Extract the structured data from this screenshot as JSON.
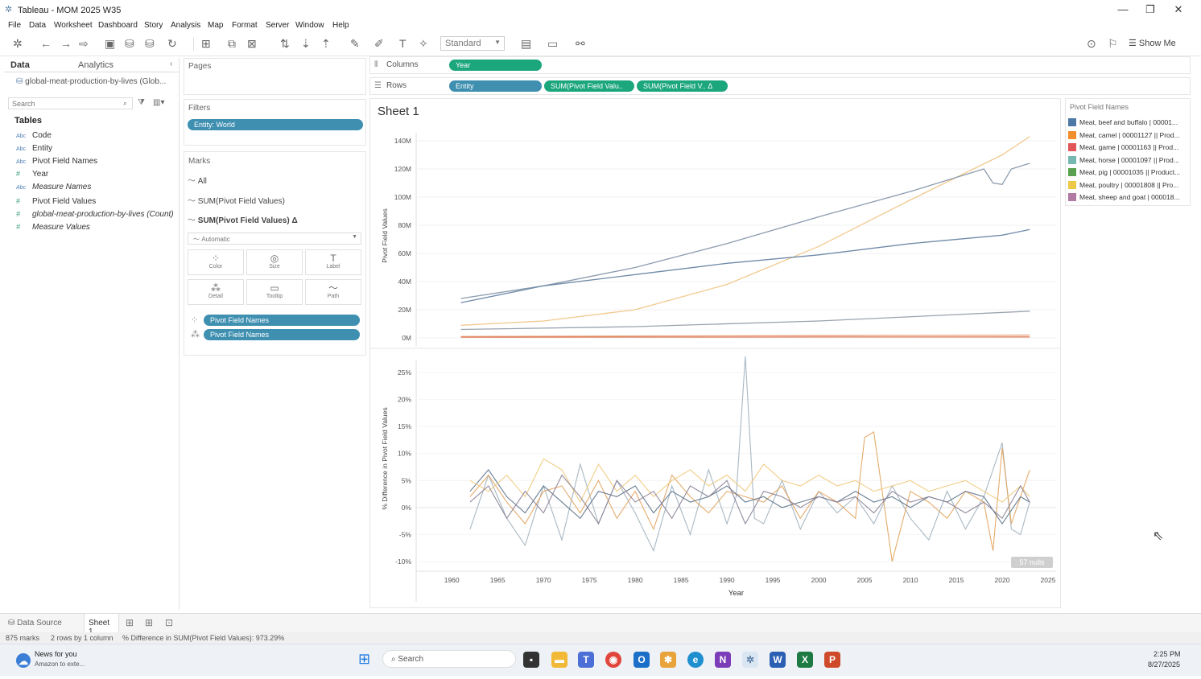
{
  "window": {
    "title": "Tableau - MOM 2025 W35",
    "minimize": "—",
    "restore": "❐",
    "close": "✕"
  },
  "menu": [
    "File",
    "Data",
    "Worksheet",
    "Dashboard",
    "Story",
    "Analysis",
    "Map",
    "Format",
    "Server",
    "Window",
    "Help"
  ],
  "toolbar": {
    "fit": "Standard",
    "show_me": "Show Me"
  },
  "data_pane": {
    "tab_data": "Data",
    "tab_analytics": "Analytics",
    "datasource": "global-meat-production-by-lives (Glob...",
    "search_placeholder": "Search",
    "tables_header": "Tables",
    "fields": [
      {
        "type": "Abc",
        "name": "Code"
      },
      {
        "type": "Abc",
        "name": "Entity"
      },
      {
        "type": "Abc",
        "name": "Pivot Field Names"
      },
      {
        "type": "#",
        "name": "Year"
      },
      {
        "type": "Abc",
        "name": "Measure Names"
      },
      {
        "type": "#",
        "name": "Pivot Field Values"
      },
      {
        "type": "#",
        "name": "global-meat-production-by-lives (Count)"
      },
      {
        "type": "#",
        "name": "Measure Values"
      }
    ]
  },
  "pages": {
    "title": "Pages"
  },
  "filters": {
    "title": "Filters",
    "pill": "Entity: World"
  },
  "marks": {
    "title": "Marks",
    "all": "All",
    "row1": "SUM(Pivot Field Values)",
    "row2": "SUM(Pivot Field Values) Δ",
    "type": "Automatic",
    "buttons": [
      "Color",
      "Size",
      "Label",
      "Detail",
      "Tooltip",
      "Path"
    ],
    "pill1": "Pivot Field Names",
    "pill2": "Pivot Field Names"
  },
  "shelves": {
    "columns_label": "Columns",
    "rows_label": "Rows",
    "columns_pill": "Year",
    "rows_pills": [
      "Entity",
      "SUM(Pivot Field Valu..",
      "SUM(Pivot Field V.. Δ"
    ]
  },
  "sheet": {
    "title": "Sheet 1",
    "nulls": "57 nulls"
  },
  "legend": {
    "title": "Pivot Field Names",
    "items": [
      {
        "label": "Meat, beef and buffalo | 00001...",
        "color": "#4e79a7"
      },
      {
        "label": "Meat, camel | 00001127 || Prod...",
        "color": "#f28e2b"
      },
      {
        "label": "Meat, game | 00001163 || Prod...",
        "color": "#e15759"
      },
      {
        "label": "Meat, horse | 00001097 || Prod...",
        "color": "#76b7b2"
      },
      {
        "label": "Meat, pig | 00001035 || Product...",
        "color": "#59a14f"
      },
      {
        "label": "Meat, poultry | 00001808 || Pro...",
        "color": "#edc948"
      },
      {
        "label": "Meat, sheep and goat | 000018...",
        "color": "#b07aa1"
      }
    ]
  },
  "chart_data": [
    {
      "type": "line",
      "ylabel": "Pivot Field Values",
      "xlabel": "Year",
      "y_ticks": [
        "0M",
        "20M",
        "40M",
        "60M",
        "80M",
        "100M",
        "120M",
        "140M"
      ],
      "ylim": [
        0,
        140
      ],
      "xlim": [
        1957,
        2025
      ],
      "series": [
        {
          "name": "Meat, poultry | 00001808 || Pro...",
          "color": "#f1c98e",
          "x": [
            1961,
            1970,
            1980,
            1990,
            2000,
            2010,
            2020,
            2023
          ],
          "y": [
            9,
            12,
            20,
            38,
            65,
            98,
            130,
            143
          ]
        },
        {
          "name": "Meat, pig | 00001035 || Product...",
          "color": "#8c9cae",
          "x": [
            1961,
            1970,
            1980,
            1990,
            2000,
            2010,
            2018,
            2019,
            2020,
            2021,
            2023
          ],
          "y": [
            28,
            37,
            50,
            67,
            86,
            104,
            120,
            110,
            109,
            120,
            124
          ]
        },
        {
          "name": "Meat, beef and buffalo | 00001...",
          "color": "#6f8aa8",
          "x": [
            1961,
            1970,
            1980,
            1990,
            2000,
            2010,
            2020,
            2023
          ],
          "y": [
            25,
            37,
            45,
            53,
            59,
            67,
            73,
            77
          ]
        },
        {
          "name": "Meat, sheep and goat | 000018...",
          "color": "#9aa3ad",
          "x": [
            1961,
            1980,
            2000,
            2023
          ],
          "y": [
            6,
            8,
            12,
            19
          ]
        },
        {
          "name": "Meat, game | 00001163 || Prod...",
          "color": "#e8a07a",
          "x": [
            1961,
            2023
          ],
          "y": [
            1,
            2
          ]
        },
        {
          "name": "Meat, camel | 00001127 || Prod...",
          "color": "#e07c5a",
          "x": [
            1961,
            2023
          ],
          "y": [
            0.5,
            0.7
          ]
        }
      ]
    },
    {
      "type": "line",
      "ylabel": "% Difference in Pivot Field Values",
      "xlabel": "Year",
      "x_ticks": [
        1960,
        1965,
        1970,
        1975,
        1980,
        1985,
        1990,
        1995,
        2000,
        2005,
        2010,
        2015,
        2020,
        2025
      ],
      "y_ticks": [
        "-10%",
        "-5%",
        "0%",
        "5%",
        "10%",
        "15%",
        "20%",
        "25%"
      ],
      "ylim": [
        -10,
        25
      ],
      "series": [
        {
          "name": "Meat, horse | 00001097 || Prod...",
          "color": "#9fb0bd",
          "x": [
            1962,
            1964,
            1966,
            1968,
            1970,
            1972,
            1974,
            1976,
            1978,
            1980,
            1982,
            1984,
            1986,
            1988,
            1990,
            1991,
            1992,
            1993,
            1994,
            1996,
            1998,
            2000,
            2002,
            2004,
            2006,
            2008,
            2010,
            2012,
            2014,
            2016,
            2018,
            2020,
            2021,
            2022,
            2023
          ],
          "y": [
            -4,
            6,
            -2,
            -7,
            4,
            -6,
            8,
            -3,
            5,
            -1,
            -8,
            4,
            -5,
            7,
            -3,
            2,
            28,
            -2,
            -3,
            5,
            -4,
            3,
            -1,
            2,
            -3,
            4,
            -2,
            -6,
            3,
            -4,
            2,
            12,
            -4,
            -5,
            1
          ]
        },
        {
          "name": "Meat, sheep and goat | 000018...",
          "color": "#e2a35d",
          "x": [
            1962,
            1964,
            1966,
            1968,
            1970,
            1972,
            1974,
            1976,
            1978,
            1980,
            1982,
            1984,
            1986,
            1988,
            1990,
            1992,
            1994,
            1996,
            1998,
            2000,
            2002,
            2004,
            2005,
            2006,
            2007,
            2008,
            2010,
            2012,
            2014,
            2016,
            2018,
            2019,
            2020,
            2021,
            2022,
            2023
          ],
          "y": [
            2,
            6,
            1,
            -3,
            3,
            4,
            -1,
            5,
            -2,
            3,
            -4,
            6,
            2,
            -1,
            3,
            2,
            1,
            4,
            -2,
            3,
            1,
            -2,
            13,
            14,
            2,
            -10,
            3,
            1,
            -2,
            3,
            1,
            -8,
            11,
            -3,
            2,
            7
          ]
        },
        {
          "name": "Meat, beef and buffalo | 00001...",
          "color": "#5a6f86",
          "x": [
            1962,
            1964,
            1966,
            1968,
            1970,
            1972,
            1974,
            1976,
            1978,
            1980,
            1982,
            1984,
            1986,
            1988,
            1990,
            1992,
            1994,
            1996,
            1998,
            2000,
            2002,
            2004,
            2006,
            2008,
            2010,
            2012,
            2014,
            2016,
            2018,
            2020,
            2022,
            2023
          ],
          "y": [
            3,
            7,
            2,
            -1,
            4,
            1,
            -2,
            3,
            2,
            4,
            -1,
            3,
            1,
            2,
            4,
            1,
            2,
            0,
            1,
            2,
            1,
            3,
            1,
            2,
            0,
            2,
            1,
            3,
            2,
            -3,
            2,
            1
          ]
        },
        {
          "name": "Meat, poultry | 00001808 || Pro...",
          "color": "#f0c879",
          "x": [
            1962,
            1964,
            1966,
            1968,
            1970,
            1972,
            1974,
            1976,
            1978,
            1980,
            1982,
            1984,
            1986,
            1988,
            1990,
            1992,
            1994,
            1996,
            1998,
            2000,
            2002,
            2004,
            2006,
            2008,
            2010,
            2012,
            2014,
            2016,
            2018,
            2020,
            2022,
            2023
          ],
          "y": [
            5,
            3,
            6,
            2,
            9,
            7,
            1,
            8,
            3,
            6,
            2,
            5,
            7,
            4,
            6,
            3,
            8,
            5,
            4,
            6,
            4,
            5,
            3,
            4,
            5,
            3,
            4,
            5,
            3,
            1,
            4,
            2
          ]
        },
        {
          "name": "Meat, pig | 00001035 || Product...",
          "color": "#8a7e93",
          "x": [
            1962,
            1964,
            1966,
            1968,
            1970,
            1972,
            1974,
            1976,
            1978,
            1980,
            1982,
            1984,
            1986,
            1988,
            1990,
            1992,
            1994,
            1996,
            1998,
            2000,
            2002,
            2004,
            2006,
            2008,
            2010,
            2012,
            2014,
            2016,
            2018,
            2020,
            2022,
            2023
          ],
          "y": [
            1,
            4,
            -2,
            3,
            -1,
            6,
            2,
            -3,
            5,
            1,
            3,
            -2,
            4,
            2,
            5,
            -3,
            3,
            2,
            0,
            2,
            1,
            2,
            -1,
            3,
            1,
            2,
            1,
            -1,
            1,
            -2,
            4,
            1
          ]
        }
      ]
    }
  ],
  "sheet_tabs": {
    "datasource": "Data Source",
    "sheet1": "Sheet 1"
  },
  "status": {
    "marks": "875 marks",
    "rows": "2 rows by 1 column",
    "sum": "% Difference in SUM(Pivot Field Values): 973.29%"
  },
  "taskbar": {
    "news_title": "News for you",
    "news_sub": "Amazon to exte...",
    "search": "Search",
    "time": "2:25 PM",
    "date": "8/27/2025"
  }
}
